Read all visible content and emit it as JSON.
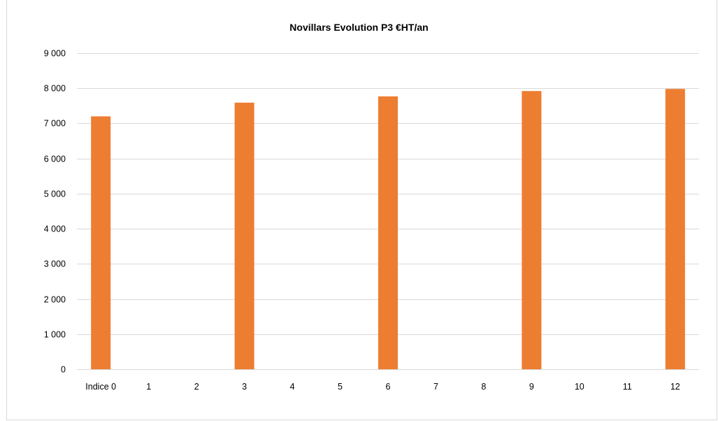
{
  "chart_data": {
    "type": "bar",
    "title": "Novillars Evolution P3 €HT/an",
    "xlabel": "",
    "ylabel": "",
    "categories": [
      "Indice 0",
      "1",
      "2",
      "3",
      "4",
      "5",
      "6",
      "7",
      "8",
      "9",
      "10",
      "11",
      "12"
    ],
    "values": [
      7200,
      null,
      null,
      7590,
      null,
      null,
      7770,
      null,
      null,
      7920,
      null,
      null,
      7980
    ],
    "ylim": [
      0,
      9000
    ],
    "yticks": [
      0,
      1000,
      2000,
      3000,
      4000,
      5000,
      6000,
      7000,
      8000,
      9000
    ],
    "ytick_labels": [
      "0",
      "1 000",
      "2 000",
      "3 000",
      "4 000",
      "5 000",
      "6 000",
      "7 000",
      "8 000",
      "9 000"
    ],
    "grid": true,
    "legend": "none",
    "bar_color": "#ed7d31",
    "grid_color": "#d9d9d9"
  }
}
